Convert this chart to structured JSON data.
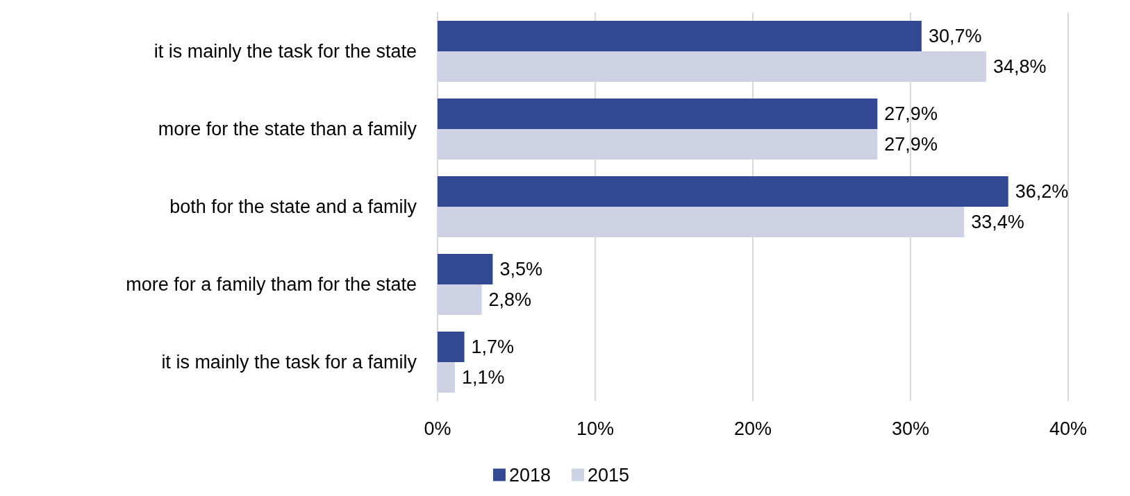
{
  "chart_data": {
    "type": "bar",
    "orientation": "horizontal",
    "categories": [
      "it is mainly the task for the state",
      "more for the state than a family",
      "both for the state and a family",
      "more for a family tham for the state",
      "it is mainly the task for a family"
    ],
    "series": [
      {
        "name": "2018",
        "color": "#334893",
        "values": [
          30.7,
          27.9,
          36.2,
          3.5,
          1.7
        ],
        "value_labels": [
          "30,7%",
          "27,9%",
          "36,2%",
          "3,5%",
          "1,7%"
        ]
      },
      {
        "name": "2015",
        "color": "#cdd3e5",
        "values": [
          34.8,
          27.9,
          33.4,
          2.8,
          1.1
        ],
        "value_labels": [
          "34,8%",
          "27,9%",
          "33,4%",
          "2,8%",
          "1,1%"
        ]
      }
    ],
    "xlim": [
      0,
      40
    ],
    "xticks": [
      {
        "value": 0,
        "label": "0%"
      },
      {
        "value": 10,
        "label": "10%"
      },
      {
        "value": 20,
        "label": "20%"
      },
      {
        "value": 30,
        "label": "30%"
      },
      {
        "value": 40,
        "label": "40%"
      }
    ],
    "grid": "x",
    "legend": "bottom"
  }
}
